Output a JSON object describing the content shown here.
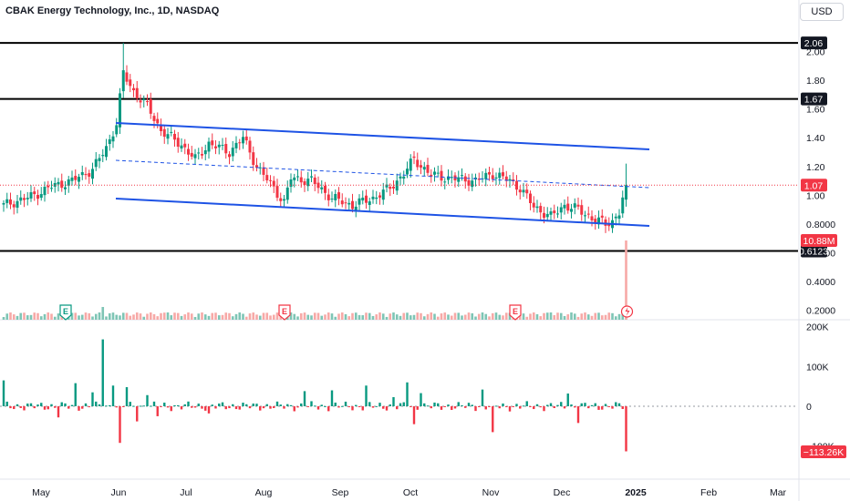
{
  "header": {
    "title": "CBAK Energy Technology, Inc., 1D, NASDAQ",
    "currency": "USD"
  },
  "colors": {
    "up": "#089981",
    "down": "#f23645",
    "channel": "#1e53e5",
    "level": "#000000",
    "volume_up": "#7ec5b5",
    "volume_down": "#f7a9a7"
  },
  "chart_data": [
    {
      "type": "candlestick",
      "title": "CBAK Energy Technology, Inc., 1D, NASDAQ",
      "x_ticks": [
        "May",
        "Jun",
        "Jul",
        "Aug",
        "Sep",
        "Oct",
        "Nov",
        "Dec",
        "2025",
        "Feb",
        "Mar"
      ],
      "y_ticks": [
        "2.00",
        "1.80",
        "1.60",
        "1.40",
        "1.20",
        "1.00",
        "0.8000",
        "0.6000",
        "0.4000",
        "0.2000"
      ],
      "horizontal_levels": [
        "2.06",
        "1.67",
        "0.6123"
      ],
      "last_price": "1.07",
      "volume_label": "10.88M",
      "events": [
        "E",
        "E",
        "E"
      ],
      "ylim": [
        0.13,
        2.32
      ],
      "close_anchors": [
        {
          "d": 0,
          "v": 0.93
        },
        {
          "d": 8,
          "v": 0.99
        },
        {
          "d": 14,
          "v": 1.06
        },
        {
          "d": 20,
          "v": 1.1
        },
        {
          "d": 26,
          "v": 1.18
        },
        {
          "d": 30,
          "v": 1.33
        },
        {
          "d": 33,
          "v": 1.5
        },
        {
          "d": 35,
          "v": 1.85
        },
        {
          "d": 38,
          "v": 1.72
        },
        {
          "d": 42,
          "v": 1.62
        },
        {
          "d": 46,
          "v": 1.45
        },
        {
          "d": 52,
          "v": 1.35
        },
        {
          "d": 56,
          "v": 1.25
        },
        {
          "d": 60,
          "v": 1.36
        },
        {
          "d": 66,
          "v": 1.3
        },
        {
          "d": 70,
          "v": 1.4
        },
        {
          "d": 74,
          "v": 1.2
        },
        {
          "d": 79,
          "v": 1.05
        },
        {
          "d": 82,
          "v": 0.95
        },
        {
          "d": 84,
          "v": 1.12
        },
        {
          "d": 90,
          "v": 1.1
        },
        {
          "d": 96,
          "v": 0.98
        },
        {
          "d": 102,
          "v": 0.93
        },
        {
          "d": 108,
          "v": 0.98
        },
        {
          "d": 113,
          "v": 1.05
        },
        {
          "d": 117,
          "v": 1.15
        },
        {
          "d": 120,
          "v": 1.25
        },
        {
          "d": 125,
          "v": 1.14
        },
        {
          "d": 130,
          "v": 1.12
        },
        {
          "d": 138,
          "v": 1.1
        },
        {
          "d": 143,
          "v": 1.15
        },
        {
          "d": 148,
          "v": 1.1
        },
        {
          "d": 151,
          "v": 1.05
        },
        {
          "d": 155,
          "v": 0.92
        },
        {
          "d": 160,
          "v": 0.85
        },
        {
          "d": 164,
          "v": 0.93
        },
        {
          "d": 168,
          "v": 0.9
        },
        {
          "d": 172,
          "v": 0.84
        },
        {
          "d": 176,
          "v": 0.8
        },
        {
          "d": 178,
          "v": 0.82
        },
        {
          "d": 180,
          "v": 0.88
        },
        {
          "d": 182,
          "v": 1.07
        }
      ]
    },
    {
      "type": "bar",
      "y_ticks": [
        "200K",
        "100K",
        "0"
      ],
      "last_value": "−113.26K",
      "ylim": [
        -160000,
        200000
      ],
      "spikes": [
        {
          "d": 0,
          "v": 65000
        },
        {
          "d": 16,
          "v": -28000
        },
        {
          "d": 21,
          "v": 58000
        },
        {
          "d": 26,
          "v": 35000
        },
        {
          "d": 29,
          "v": 168000
        },
        {
          "d": 32,
          "v": 52000
        },
        {
          "d": 34,
          "v": -92000
        },
        {
          "d": 36,
          "v": 48000
        },
        {
          "d": 39,
          "v": -38000
        },
        {
          "d": 42,
          "v": 28000
        },
        {
          "d": 45,
          "v": -25000
        },
        {
          "d": 60,
          "v": -18000
        },
        {
          "d": 88,
          "v": 38000
        },
        {
          "d": 96,
          "v": 40000
        },
        {
          "d": 106,
          "v": 52000
        },
        {
          "d": 114,
          "v": 23000
        },
        {
          "d": 118,
          "v": 60000
        },
        {
          "d": 120,
          "v": -45000
        },
        {
          "d": 122,
          "v": 33000
        },
        {
          "d": 140,
          "v": 42000
        },
        {
          "d": 143,
          "v": -65000
        },
        {
          "d": 165,
          "v": 32000
        },
        {
          "d": 168,
          "v": -42000
        },
        {
          "d": 182,
          "v": -113260
        }
      ]
    }
  ]
}
